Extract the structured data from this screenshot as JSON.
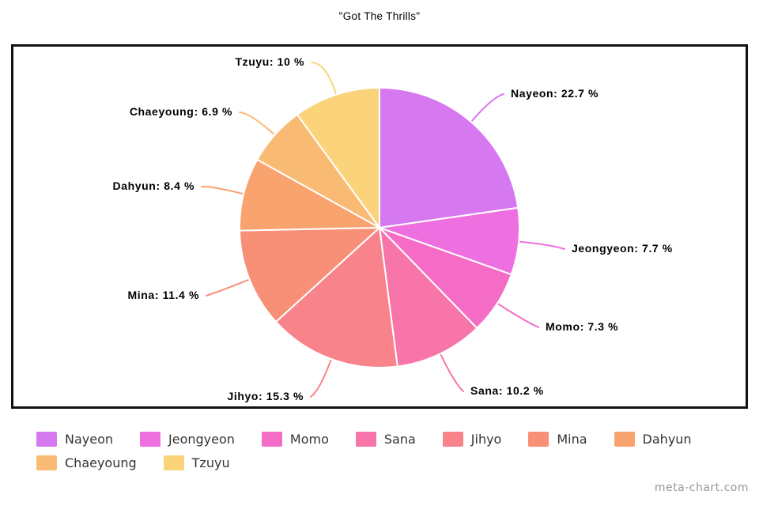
{
  "watermark": "meta-chart.com",
  "chart_data": {
    "type": "pie",
    "title": "\"Got The Thrills\"",
    "legend_position": "bottom",
    "direction": "clockwise",
    "start_angle_deg": -90,
    "center": [
      480,
      288
    ],
    "radius": 177,
    "slice_border_color": "#ffffff",
    "slices": [
      {
        "name": "Nayeon",
        "value": 22.7,
        "color": "#d678f0",
        "label": "Nayeon: 22.7 %",
        "anchor": [
          637,
          119
        ],
        "align": "left"
      },
      {
        "name": "Jeongyeon",
        "value": 7.7,
        "color": "#ee6fdf",
        "label": "Jeongyeon: 7.7 %",
        "anchor": [
          714,
          315
        ],
        "align": "left"
      },
      {
        "name": "Momo",
        "value": 7.3,
        "color": "#f46cc6",
        "label": "Momo: 7.3 %",
        "anchor": [
          681,
          414
        ],
        "align": "left"
      },
      {
        "name": "Sana",
        "value": 10.2,
        "color": "#f875a9",
        "label": "Sana: 10.2 %",
        "anchor": [
          586,
          495
        ],
        "align": "left"
      },
      {
        "name": "Jihyo",
        "value": 15.3,
        "color": "#f8838b",
        "label": "Jihyo: 15.3 %",
        "anchor": [
          393,
          502
        ],
        "align": "right"
      },
      {
        "name": "Mina",
        "value": 11.4,
        "color": "#f89077",
        "label": "Mina: 11.4 %",
        "anchor": [
          261,
          374
        ],
        "align": "right"
      },
      {
        "name": "Dahyun",
        "value": 8.4,
        "color": "#f9a36e",
        "label": "Dahyun: 8.4 %",
        "anchor": [
          255,
          236
        ],
        "align": "right"
      },
      {
        "name": "Chaeyoung",
        "value": 6.9,
        "color": "#f9ba74",
        "label": "Chaeyoung: 6.9 %",
        "anchor": [
          303,
          142
        ],
        "align": "right"
      },
      {
        "name": "Tzuyu",
        "value": 10.0,
        "color": "#fad37b",
        "label": "Tzuyu: 10 %",
        "anchor": [
          394,
          79
        ],
        "align": "right"
      }
    ]
  }
}
